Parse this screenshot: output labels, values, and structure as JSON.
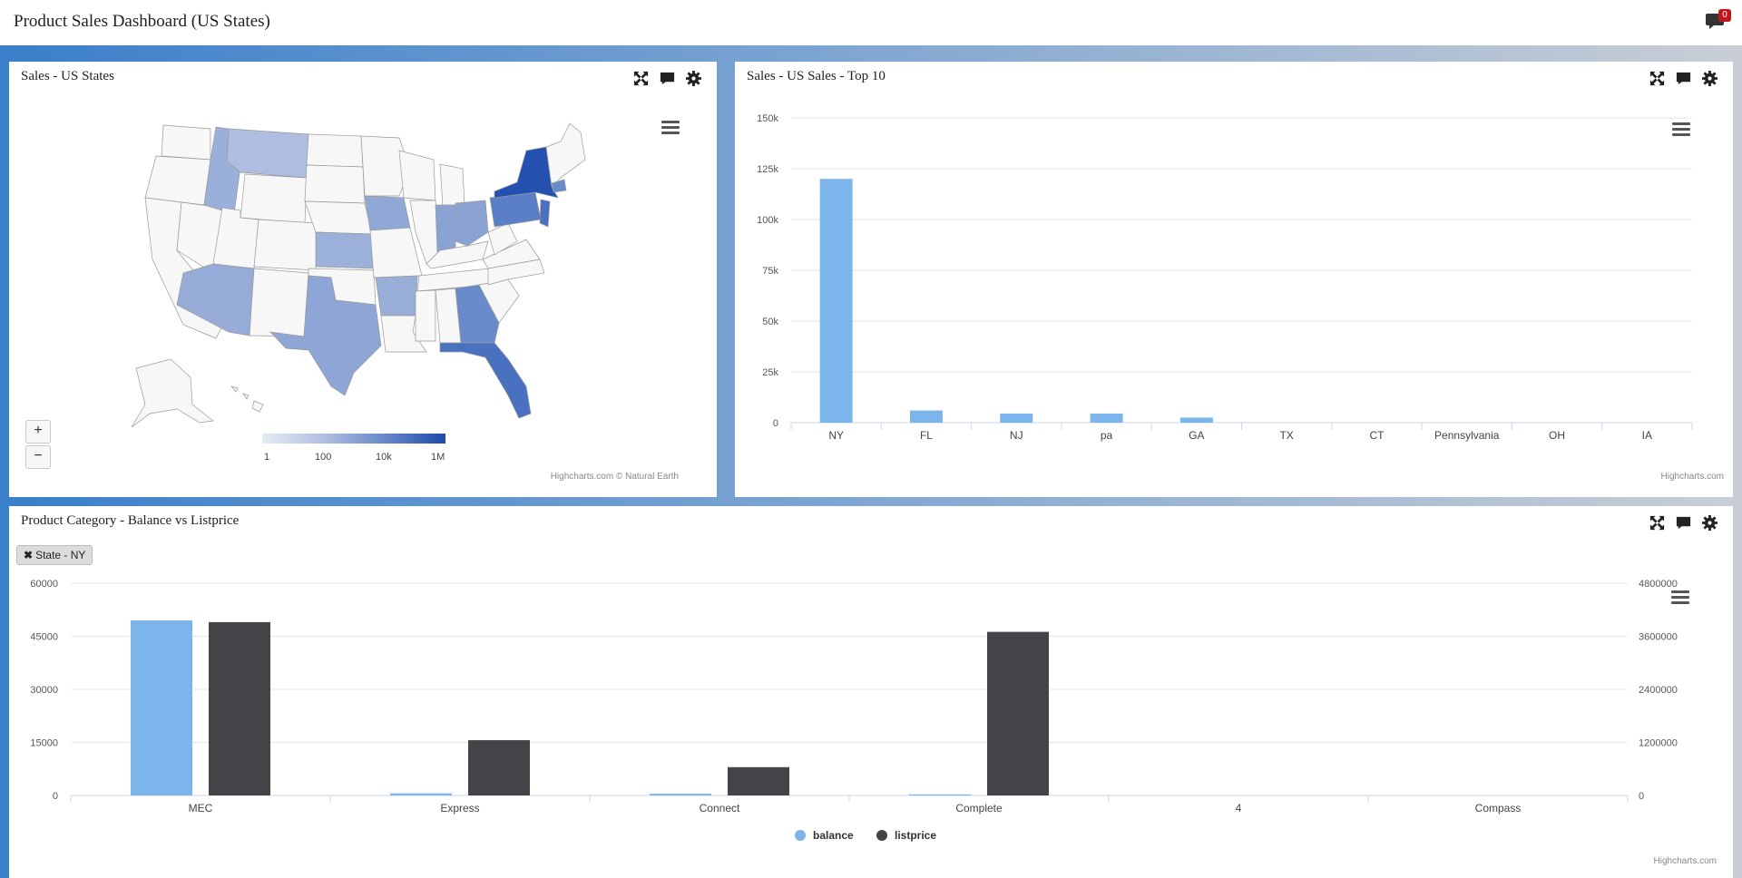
{
  "app": {
    "title": "Product Sales Dashboard (US States)",
    "notification_count": "0"
  },
  "map_panel": {
    "title": "Sales - US States",
    "zoom_in": "+",
    "zoom_out": "−",
    "legend_labels": [
      "1",
      "100",
      "10k",
      "1M"
    ],
    "credit": "Highcharts.com © Natural Earth"
  },
  "top10_panel": {
    "title": "Sales - US Sales - Top 10",
    "credit": "Highcharts.com"
  },
  "category_panel": {
    "title": "Product Category - Balance vs Listprice",
    "filter_label": "State - NY",
    "credit": "Highcharts.com"
  },
  "colors": {
    "balance": "#7cb5ec",
    "listprice": "#434348",
    "map_high": "#1f4aaa",
    "map_low": "#e6ebf5"
  },
  "chart_data": [
    {
      "type": "bar",
      "title": "Sales - US Sales - Top 10",
      "categories": [
        "NY",
        "FL",
        "NJ",
        "pa",
        "GA",
        "TX",
        "CT",
        "Pennsylvania",
        "OH",
        "IA"
      ],
      "values": [
        120000,
        6000,
        4500,
        4500,
        2500,
        0,
        0,
        0,
        0,
        0
      ],
      "yticks": [
        "0",
        "25k",
        "50k",
        "75k",
        "100k",
        "125k",
        "150k"
      ],
      "ylim": [
        0,
        150000
      ]
    },
    {
      "type": "bar",
      "title": "Product Category - Balance vs Listprice",
      "categories": [
        "MEC",
        "Express",
        "Connect",
        "Complete",
        "4",
        "Compass"
      ],
      "series": [
        {
          "name": "balance",
          "axis": "left",
          "values": [
            49500,
            600,
            500,
            300,
            0,
            0
          ]
        },
        {
          "name": "listprice",
          "axis": "right",
          "values": [
            3920000,
            1250000,
            640000,
            3700000,
            0,
            0
          ]
        }
      ],
      "yticks_left": [
        "0",
        "15000",
        "30000",
        "45000",
        "60000"
      ],
      "yticks_right": [
        "0",
        "1200000",
        "2400000",
        "3600000",
        "4800000"
      ],
      "ylim_left": [
        0,
        60000
      ],
      "ylim_right": [
        0,
        4800000
      ]
    }
  ]
}
